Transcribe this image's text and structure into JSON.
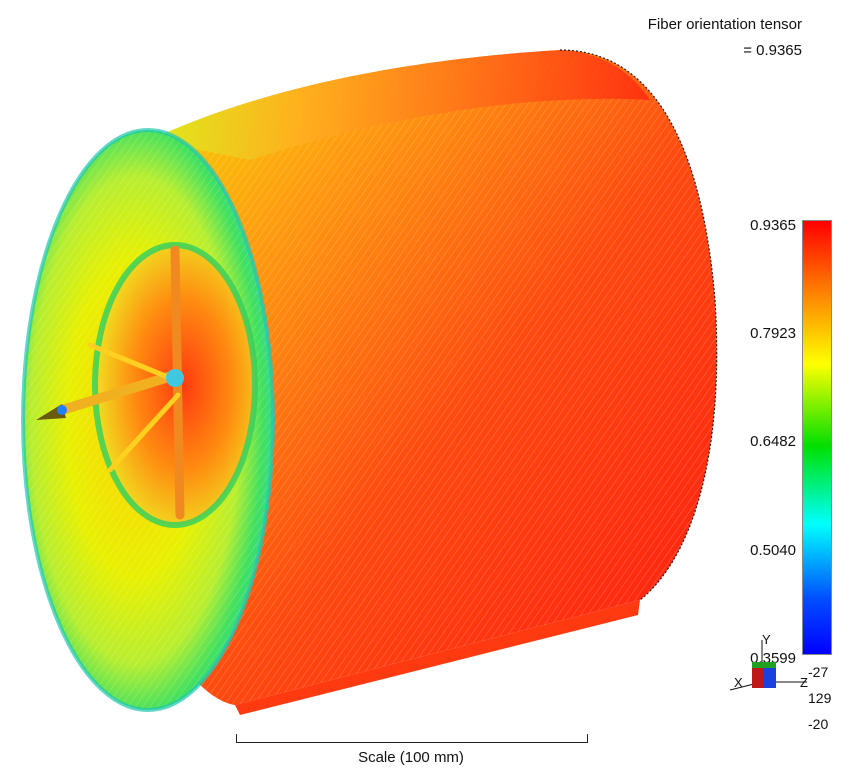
{
  "header": {
    "title": "Fiber orientation tensor",
    "max_readout": "= 0.9365"
  },
  "legend": {
    "ticks": [
      "0.9365",
      "0.7923",
      "0.6482",
      "0.5040",
      "0.3599"
    ],
    "colors": [
      "#ff0000",
      "#ffff00",
      "#00e000",
      "#00ffff",
      "#0000ff"
    ]
  },
  "axes": {
    "y_label": "Y",
    "x_label": "X",
    "z_label": "Z"
  },
  "coords": [
    "-27",
    "129",
    "-20"
  ],
  "scale": {
    "label": "Scale (100 mm)"
  },
  "icons": [
    "cylinder-model",
    "axis-triad-icon"
  ]
}
